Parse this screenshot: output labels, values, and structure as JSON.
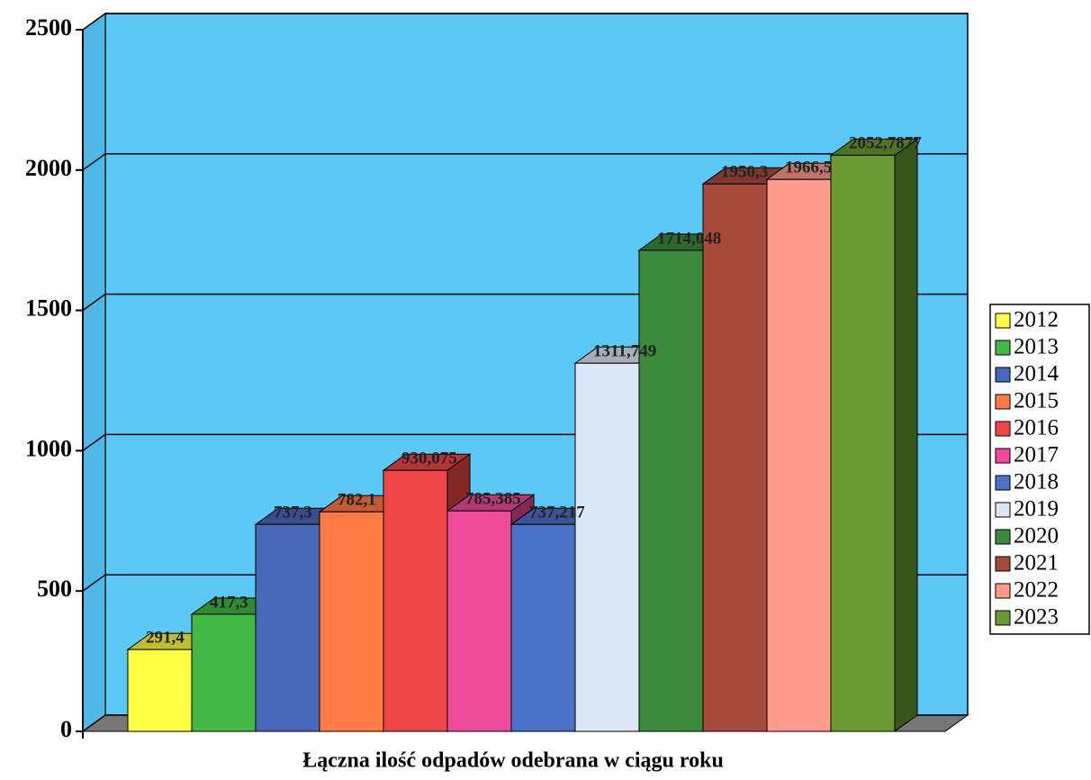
{
  "chart_data": {
    "type": "bar3d",
    "x_label": "Łączna ilość odpadów odebrana w ciągu roku",
    "ylim": [
      0,
      2500
    ],
    "yticks": [
      0,
      500,
      1000,
      1500,
      2000,
      2500
    ],
    "grid": true,
    "legend": "right",
    "series": [
      {
        "name": "2012",
        "color": "#ffff44",
        "values": [
          291.4
        ],
        "value_labels": [
          "291,4"
        ]
      },
      {
        "name": "2013",
        "color": "#44b844",
        "values": [
          417.3
        ],
        "value_labels": [
          "417,3"
        ]
      },
      {
        "name": "2014",
        "color": "#4a68b8",
        "values": [
          737.3
        ],
        "value_labels": [
          "737,3"
        ]
      },
      {
        "name": "2015",
        "color": "#ff7a44",
        "values": [
          782.1
        ],
        "value_labels": [
          "782,1"
        ]
      },
      {
        "name": "2016",
        "color": "#ee4646",
        "values": [
          930.075
        ],
        "value_labels": [
          "930,075"
        ]
      },
      {
        "name": "2017",
        "color": "#ee4a9a",
        "values": [
          785.385
        ],
        "value_labels": [
          "785,385"
        ]
      },
      {
        "name": "2018",
        "color": "#4a72c8",
        "values": [
          737.217
        ],
        "value_labels": [
          "737,217"
        ]
      },
      {
        "name": "2019",
        "color": "#dde8f6",
        "values": [
          1311.749
        ],
        "value_labels": [
          "1311,749"
        ]
      },
      {
        "name": "2020",
        "color": "#3c8a3c",
        "values": [
          1714.048
        ],
        "value_labels": [
          "1714,048"
        ]
      },
      {
        "name": "2021",
        "color": "#a84a3a",
        "values": [
          1950.3
        ],
        "value_labels": [
          "1950,3"
        ]
      },
      {
        "name": "2022",
        "color": "#ff9a8c",
        "values": [
          1966.5
        ],
        "value_labels": [
          "1966,5"
        ]
      },
      {
        "name": "2023",
        "color": "#6a9a32",
        "values": [
          2052.7877
        ],
        "value_labels": [
          "2052,7877"
        ]
      }
    ]
  }
}
